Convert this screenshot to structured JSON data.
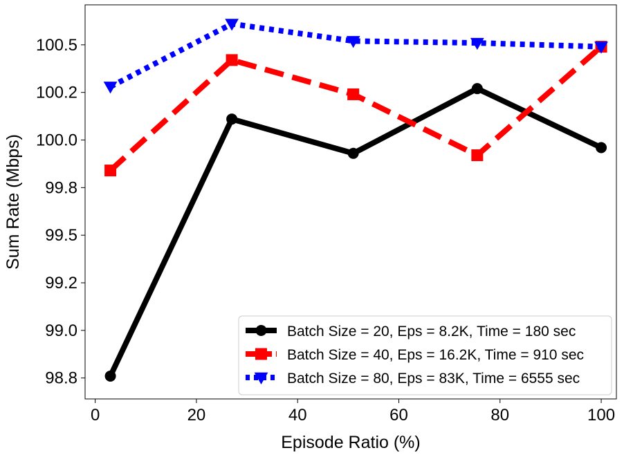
{
  "chart_data": {
    "type": "line",
    "title": "",
    "xlabel": "Episode Ratio (%)",
    "ylabel": "Sum Rate (Mbps)",
    "xlim": [
      -2,
      103
    ],
    "ylim": [
      98.64,
      100.71
    ],
    "x_ticks": [
      0,
      20,
      40,
      60,
      80,
      100
    ],
    "x_tick_labels": [
      "0",
      "20",
      "40",
      "60",
      "80",
      "100"
    ],
    "y_ticks": [
      98.75,
      99.0,
      99.25,
      99.5,
      99.75,
      100.0,
      100.25,
      100.5
    ],
    "y_tick_labels": [
      "98.8",
      "99.0",
      "99.2",
      "99.5",
      "99.8",
      "100.0",
      "100.2",
      "100.5"
    ],
    "grid": false,
    "legend_position": "lower-right",
    "x": [
      3,
      27,
      51,
      75.5,
      100
    ],
    "series": [
      {
        "name": "Batch Size = 20, Eps = 8.2K, Time = 180 sec",
        "values": [
          98.76,
          100.11,
          99.93,
          100.27,
          99.96
        ],
        "color": "#000000",
        "line_style": "solid",
        "marker": "circle"
      },
      {
        "name": "Batch Size = 40, Eps = 16.2K, Time = 910 sec",
        "values": [
          99.84,
          100.42,
          100.24,
          99.92,
          100.49
        ],
        "color": "#ff0000",
        "line_style": "dashed",
        "marker": "square"
      },
      {
        "name": "Batch Size = 80, Eps = 83K, Time = 6555 sec",
        "values": [
          100.28,
          100.61,
          100.52,
          100.51,
          100.49
        ],
        "color": "#0000ff",
        "line_style": "dotted",
        "marker": "triangle-down"
      }
    ]
  }
}
